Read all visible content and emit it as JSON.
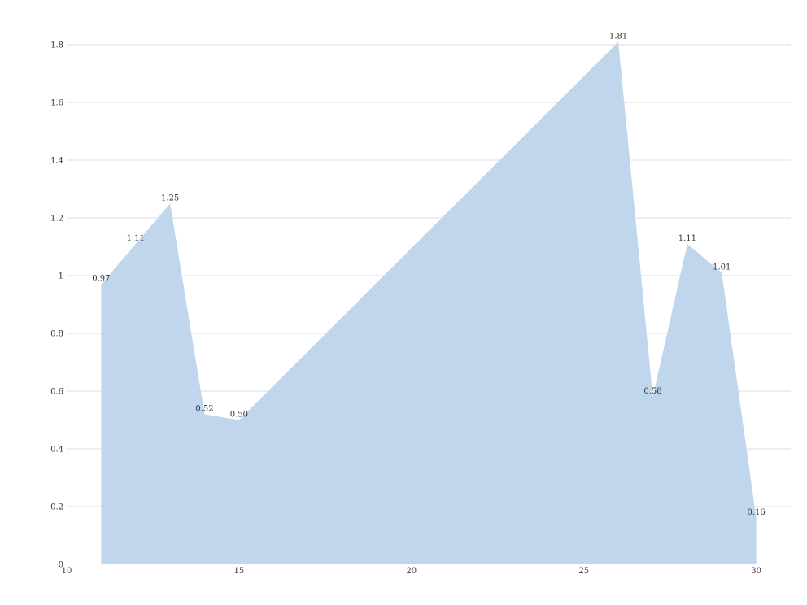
{
  "chart_data": {
    "type": "area",
    "x": [
      11,
      12,
      13,
      14,
      15,
      26,
      27,
      28,
      29,
      30
    ],
    "series": [
      {
        "values": [
          0.97,
          1.11,
          1.25,
          0.52,
          0.5,
          1.81,
          0.58,
          1.11,
          1.01,
          0.16
        ],
        "labels": [
          "0.97",
          "1.11",
          "1.25",
          "0.52",
          "0.50",
          "1.81",
          "0.58",
          "1.11",
          "1.01",
          "0.16"
        ],
        "color": "#c0d6ed"
      }
    ],
    "xlim": [
      10,
      31
    ],
    "ylim": [
      0,
      1.8
    ],
    "x_ticks": [
      10,
      15,
      20,
      25,
      30
    ],
    "x_tick_labels": [
      "10",
      "15",
      "20",
      "25",
      "30"
    ],
    "y_ticks": [
      0,
      0.2,
      0.4,
      0.6,
      0.8,
      1,
      1.2,
      1.4,
      1.6,
      1.8
    ],
    "y_tick_labels": [
      "0",
      "0.2",
      "0.4",
      "0.6",
      "0.8",
      "1",
      "1.2",
      "1.4",
      "1.6",
      "1.8"
    ],
    "grid": true,
    "title": "",
    "xlabel": "",
    "ylabel": "",
    "gridline_color": "#dcdcdc",
    "text_color": "#333333"
  }
}
